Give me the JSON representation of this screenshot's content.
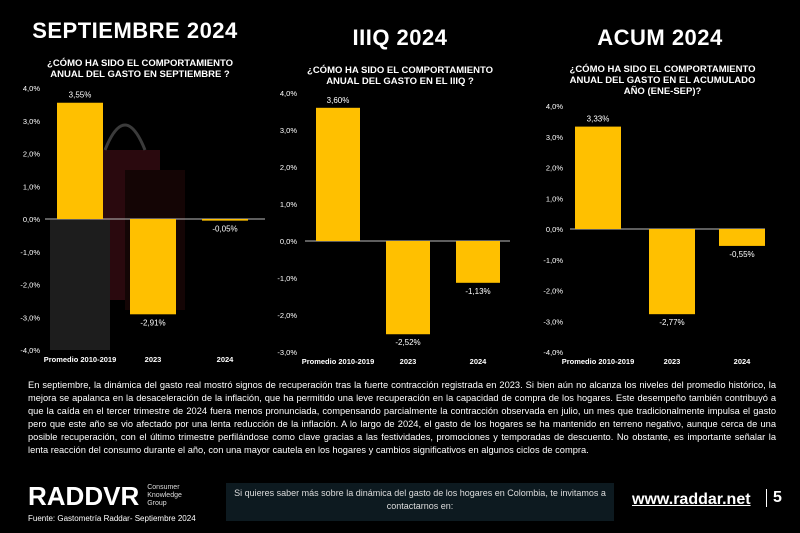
{
  "colors": {
    "bar": "#FFC000",
    "background": "#000000",
    "text": "#FFFFFF",
    "cta_bg": "#0d1a20"
  },
  "chart_data": [
    {
      "type": "bar",
      "title": "SEPTIEMBRE 2024",
      "subtitle": "¿CÓMO HA SIDO EL COMPORTAMIENTO ANUAL DEL GASTO EN SEPTIEMBRE ?",
      "categories": [
        "Promedio 2010-2019",
        "2023",
        "2024"
      ],
      "values": [
        3.55,
        -2.91,
        -0.05
      ],
      "value_labels": [
        "3,55%",
        "-2,91%",
        "-0,05%"
      ],
      "ylim": [
        -4,
        4
      ],
      "yticks": [
        "4,0%",
        "3,0%",
        "2,0%",
        "1,0%",
        "0,0%",
        "-1,0%",
        "-2,0%",
        "-3,0%",
        "-4,0%"
      ]
    },
    {
      "type": "bar",
      "title": "IIIQ 2024",
      "subtitle": "¿CÓMO HA SIDO EL COMPORTAMIENTO ANUAL DEL GASTO EN EL IIIQ ?",
      "categories": [
        "Promedio 2010-2019",
        "2023",
        "2024"
      ],
      "values": [
        3.6,
        -2.52,
        -1.13
      ],
      "value_labels": [
        "3,60%",
        "-2,52%",
        "-1,13%"
      ],
      "ylim": [
        -3,
        4
      ],
      "yticks": [
        "4,0%",
        "3,0%",
        "2,0%",
        "1,0%",
        "0,0%",
        "-1,0%",
        "-2,0%",
        "-3,0%"
      ]
    },
    {
      "type": "bar",
      "title": "ACUM 2024",
      "subtitle": "¿CÓMO HA SIDO EL COMPORTAMIENTO ANUAL DEL GASTO EN EL ACUMULADO AÑO (ENE-SEP)?",
      "categories": [
        "Promedio 2010-2019",
        "2023",
        "2024"
      ],
      "values": [
        3.33,
        -2.77,
        -0.55
      ],
      "value_labels": [
        "3,33%",
        "-2,77%",
        "-0,55%"
      ],
      "ylim": [
        -4,
        4
      ],
      "yticks": [
        "4,0%",
        "3,0%",
        "2,0%",
        "1,0%",
        "0,0%",
        "-1,0%",
        "-2,0%",
        "-3,0%",
        "-4,0%"
      ]
    }
  ],
  "paragraph": "En septiembre, la dinámica del gasto real mostró signos de recuperación tras la fuerte contracción registrada en 2023. Si bien aún no alcanza los niveles del promedio histórico, la mejora se apalanca en la desaceleración de la inflación, que ha permitido una leve recuperación en la capacidad de compra de los hogares. Este desempeño también contribuyó a que la caída en el tercer trimestre de 2024 fuera menos pronunciada, compensando parcialmente la contracción observada en julio, un mes que tradicionalmente impulsa el gasto pero que este año se vio afectado por una lenta reducción de la inflación. A lo largo de 2024, el gasto de los hogares se ha mantenido en terreno negativo, aunque cerca de una posible recuperación, con el último trimestre perfilándose como clave gracias a las festividades, promociones y temporadas de descuento. No obstante, es importante señalar la lenta reacción del consumo durante el año, con una mayor cautela en los hogares y cambios significativos en algunos ciclos de compra.",
  "footer": {
    "logo": "RADDVR",
    "logo_sub": "Consumer Knowledge Group",
    "source": "Fuente: Gastometría Raddar- Septiembre 2024",
    "cta": "Si quieres saber más sobre la dinámica del gasto de los hogares en Colombia, te invitamos a contactarnos en:",
    "url": "www.raddar.net",
    "page": "5"
  }
}
